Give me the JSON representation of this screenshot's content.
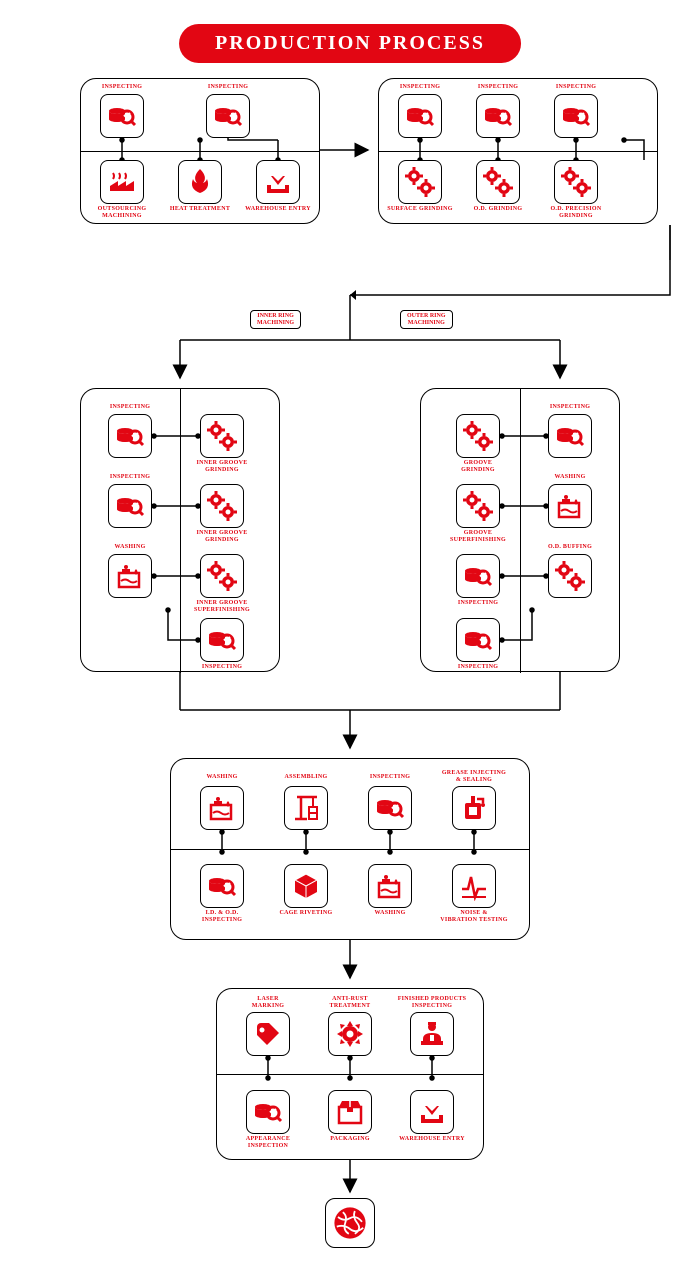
{
  "title": "PRODUCTION PROCESS",
  "colors": {
    "accent": "#e20613",
    "line": "#000000",
    "bg": "#ffffff"
  },
  "chips": {
    "inner": "INNER RING\nMACHINING",
    "outer": "OUTER RING\nMACHINING"
  },
  "labels": {
    "inspecting": "INSPECTING",
    "outsourcing": "OUTSOURCING\nMACHINING",
    "heat": "HEAT TREATMENT",
    "warehouse": "WAREHOUSE ENTRY",
    "surface": "SURFACE GRINDING",
    "od_grind": "O.D. GRINDING",
    "od_prec": "O.D. PRECISION\nGRINDING",
    "inner_groove_grind": "INNER GROOVE\nGRINDING",
    "inner_groove_super": "INNER GROOVE\nSUPERFINISHING",
    "washing": "WASHING",
    "groove_grind": "GROOVE\nGRINDING",
    "groove_super": "GROOVE\nSUPERFINISHING",
    "od_buff": "O.D. BUFFING",
    "assembling": "ASSEMBLING",
    "grease": "GREASE INJECTING\n& SEALING",
    "idod": "I.D. & O.D.\nINSPECTING",
    "cage": "CAGE RIVETING",
    "noise": "NOISE &\nVIBRATION TESTING",
    "laser": "LASER\nMARKING",
    "antirust": "ANTI-RUST\nTREATMENT",
    "finished": "FINISHED PRODUCTS\nINSPECTING",
    "appearance": "APPEARANCE\nINSPECTION",
    "packaging": "PACKAGING"
  }
}
